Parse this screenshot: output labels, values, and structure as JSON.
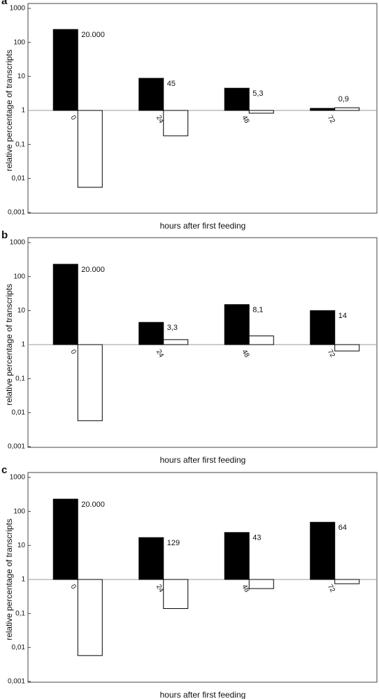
{
  "chart_data": [
    {
      "type": "bar",
      "label": "a",
      "y_label": "relative percentage of transcripts",
      "x_label": "hours after first feeding",
      "log_scale": true,
      "categories": [
        "0",
        "24",
        "48",
        "72"
      ],
      "series": [
        {
          "color": "#000000",
          "values": [
            240,
            8.8,
            4.5,
            1.15
          ]
        },
        {
          "color": "#ffffff",
          "values": [
            0.0055,
            0.18,
            0.83,
            1.2
          ]
        }
      ],
      "annotations": [
        "20.000",
        "45",
        "5,3",
        "0,9"
      ],
      "ylim": [
        0.001,
        1000
      ],
      "yticks": [
        {
          "value": 0.001,
          "label": "0,001"
        },
        {
          "value": 0.01,
          "label": "0,01"
        },
        {
          "value": 0.1,
          "label": "0,1"
        },
        1,
        10,
        100,
        1000
      ]
    },
    {
      "type": "bar",
      "label": "b",
      "y_label": "relative percentage of transcripts",
      "x_label": "hours after first feeding",
      "log_scale": true,
      "categories": [
        "0",
        "24",
        "48",
        "72"
      ],
      "series": [
        {
          "color": "#000000",
          "values": [
            230,
            4.5,
            15,
            10
          ]
        },
        {
          "color": "#ffffff",
          "values": [
            0.0058,
            1.4,
            1.8,
            0.65
          ]
        }
      ],
      "annotations": [
        "20.000",
        "3,3",
        "8,1",
        "14"
      ],
      "ylim": [
        0.001,
        1000
      ],
      "yticks": [
        {
          "value": 0.001,
          "label": "0,001"
        },
        {
          "value": 0.01,
          "label": "0,01"
        },
        {
          "value": 0.1,
          "label": "0,1"
        },
        1,
        10,
        100,
        1000
      ]
    },
    {
      "type": "bar",
      "label": "c",
      "y_label": "relative percentage of transcripts",
      "x_label": "hours after first feeding",
      "log_scale": true,
      "categories": [
        "0",
        "24",
        "48",
        "72"
      ],
      "series": [
        {
          "color": "#000000",
          "values": [
            230,
            17,
            24,
            48
          ]
        },
        {
          "color": "#ffffff",
          "values": [
            0.0058,
            0.14,
            0.54,
            0.75
          ]
        }
      ],
      "annotations": [
        "20.000",
        "129",
        "43",
        "64"
      ],
      "ylim": [
        0.001,
        1000
      ],
      "yticks": [
        {
          "value": 0.001,
          "label": "0,001"
        },
        {
          "value": 0.01,
          "label": "0,01"
        },
        {
          "value": 0.1,
          "label": "0,1"
        },
        1,
        10,
        100,
        1000
      ]
    }
  ]
}
